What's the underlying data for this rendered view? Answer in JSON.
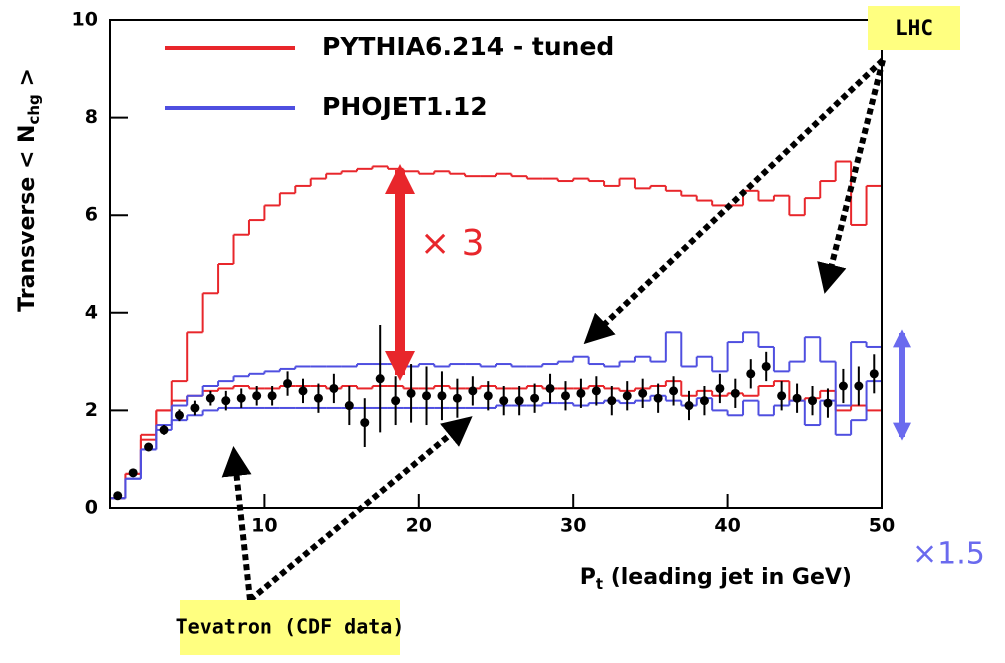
{
  "chart_data": {
    "type": "histogram",
    "x_label": [
      "P",
      "t",
      " (leading jet in GeV)"
    ],
    "y_label": [
      "Transverse < N",
      "chg",
      " >"
    ],
    "xlim": [
      0,
      50
    ],
    "ylim": [
      0,
      10
    ],
    "xticks": [
      10,
      20,
      30,
      40,
      50
    ],
    "yticks": [
      0,
      2,
      4,
      6,
      8,
      10
    ],
    "bins": [
      0,
      1,
      2,
      3,
      4,
      5,
      6,
      7,
      8,
      9,
      10,
      11,
      12,
      13,
      14,
      15,
      16,
      17,
      18,
      19,
      20,
      21,
      22,
      23,
      24,
      25,
      26,
      27,
      28,
      29,
      30,
      31,
      32,
      33,
      34,
      35,
      36,
      37,
      38,
      39,
      40,
      41,
      42,
      43,
      44,
      45,
      46,
      47,
      48,
      49,
      50
    ],
    "series": [
      {
        "name": "PYTHIA6.214 - tuned",
        "color": "#e8262b",
        "curves": [
          [
            0.2,
            0.7,
            1.5,
            2.0,
            2.6,
            3.6,
            4.4,
            5.0,
            5.6,
            5.9,
            6.2,
            6.45,
            6.6,
            6.75,
            6.85,
            6.9,
            6.95,
            7.0,
            6.95,
            6.9,
            6.85,
            6.9,
            6.85,
            6.8,
            6.8,
            6.85,
            6.8,
            6.75,
            6.75,
            6.7,
            6.75,
            6.7,
            6.6,
            6.75,
            6.55,
            6.6,
            6.5,
            6.4,
            6.3,
            6.2,
            6.2,
            6.5,
            6.3,
            6.4,
            6.0,
            6.35,
            6.7,
            7.1,
            5.8,
            6.6
          ],
          [
            0.2,
            0.7,
            1.4,
            2.0,
            2.2,
            2.3,
            2.4,
            2.45,
            2.5,
            2.45,
            2.45,
            2.5,
            2.5,
            2.5,
            2.45,
            2.5,
            2.45,
            2.5,
            2.5,
            2.45,
            2.45,
            2.5,
            2.45,
            2.45,
            2.5,
            2.45,
            2.45,
            2.5,
            2.45,
            2.45,
            2.45,
            2.5,
            2.45,
            2.4,
            2.45,
            2.5,
            2.6,
            2.3,
            2.4,
            2.3,
            2.35,
            2.3,
            2.5,
            2.6,
            2.2,
            2.25,
            2.4,
            2.0,
            2.1,
            2.0
          ]
        ]
      },
      {
        "name": "PHOJET1.12",
        "color": "#4f4fe0",
        "curves": [
          [
            0.2,
            0.6,
            1.2,
            1.7,
            2.1,
            2.3,
            2.5,
            2.6,
            2.7,
            2.75,
            2.8,
            2.85,
            2.9,
            2.9,
            2.9,
            2.9,
            2.95,
            2.95,
            2.95,
            2.9,
            2.95,
            2.9,
            2.95,
            2.95,
            2.9,
            2.95,
            2.9,
            2.9,
            2.95,
            3.0,
            3.1,
            2.95,
            2.9,
            3.0,
            3.1,
            3.0,
            3.6,
            2.9,
            3.1,
            2.8,
            3.4,
            3.6,
            3.3,
            2.8,
            3.0,
            3.5,
            3.0,
            2.1,
            3.4,
            3.3
          ],
          [
            0.2,
            0.6,
            1.2,
            1.6,
            1.8,
            1.9,
            2.0,
            2.05,
            2.05,
            2.05,
            2.05,
            2.05,
            2.05,
            2.05,
            2.05,
            2.05,
            2.05,
            2.05,
            2.05,
            2.05,
            2.05,
            2.05,
            2.05,
            2.05,
            2.05,
            2.1,
            2.1,
            2.1,
            2.15,
            2.15,
            2.1,
            2.15,
            2.2,
            2.15,
            2.2,
            2.3,
            2.2,
            2.1,
            2.25,
            2.0,
            1.9,
            2.2,
            1.9,
            2.1,
            2.2,
            1.7,
            2.2,
            1.5,
            1.8,
            2.6
          ]
        ]
      }
    ],
    "points": {
      "color": "#000000",
      "x": [
        0.5,
        1.5,
        2.5,
        3.5,
        4.5,
        5.5,
        6.5,
        7.5,
        8.5,
        9.5,
        10.5,
        11.5,
        12.5,
        13.5,
        14.5,
        15.5,
        16.5,
        17.5,
        18.5,
        19.5,
        20.5,
        21.5,
        22.5,
        23.5,
        24.5,
        25.5,
        26.5,
        27.5,
        28.5,
        29.5,
        30.5,
        31.5,
        32.5,
        33.5,
        34.5,
        35.5,
        36.5,
        37.5,
        38.5,
        39.5,
        40.5,
        41.5,
        42.5,
        43.5,
        44.5,
        45.5,
        46.5,
        47.5,
        48.5,
        49.5
      ],
      "values": [
        0.25,
        0.72,
        1.25,
        1.6,
        1.9,
        2.05,
        2.25,
        2.2,
        2.25,
        2.3,
        2.3,
        2.55,
        2.4,
        2.25,
        2.45,
        2.1,
        1.75,
        2.65,
        2.2,
        2.35,
        2.3,
        2.3,
        2.25,
        2.4,
        2.3,
        2.2,
        2.2,
        2.25,
        2.45,
        2.3,
        2.35,
        2.4,
        2.2,
        2.3,
        2.35,
        2.25,
        2.4,
        2.1,
        2.2,
        2.45,
        2.35,
        2.75,
        2.9,
        2.3,
        2.25,
        2.2,
        2.15,
        2.5,
        2.5,
        2.75
      ],
      "errors": [
        0.03,
        0.05,
        0.08,
        0.1,
        0.12,
        0.15,
        0.15,
        0.2,
        0.2,
        0.2,
        0.2,
        0.25,
        0.25,
        0.3,
        0.3,
        0.4,
        0.5,
        1.1,
        0.5,
        0.6,
        0.6,
        0.5,
        0.4,
        0.3,
        0.3,
        0.3,
        0.3,
        0.3,
        0.3,
        0.3,
        0.3,
        0.3,
        0.3,
        0.3,
        0.3,
        0.3,
        0.3,
        0.3,
        0.3,
        0.3,
        0.3,
        0.3,
        0.3,
        0.3,
        0.3,
        0.3,
        0.3,
        0.35,
        0.4,
        0.4
      ]
    },
    "annotations": [
      "LHC",
      "Tevatron (CDF data)",
      "× 3",
      "×1.5"
    ]
  }
}
